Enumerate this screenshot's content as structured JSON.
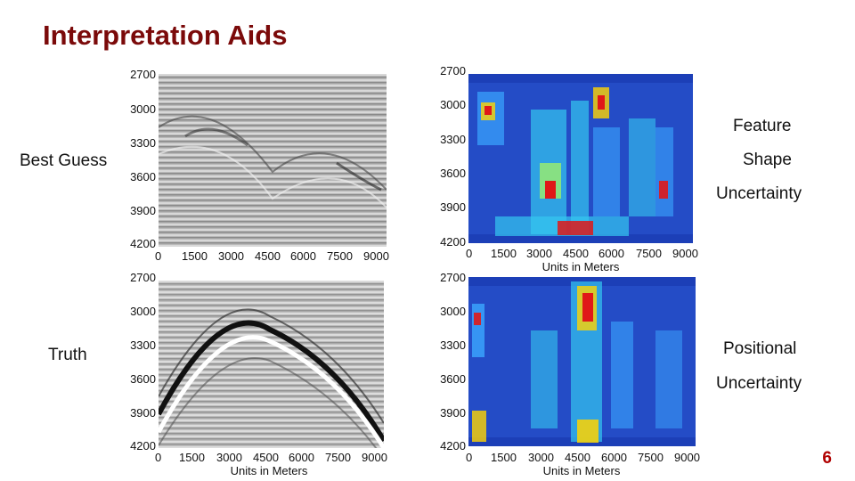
{
  "slide": {
    "title": "Interpretation Aids",
    "page_number": "6"
  },
  "labels": {
    "best_guess": "Best Guess",
    "truth": "Truth",
    "feature": "Feature",
    "shape": "Shape",
    "uncertainty_top": "Uncertainty",
    "positional": "Positional",
    "uncertainty_bottom": "Uncertainty"
  },
  "axes": {
    "y_ticks": [
      "2700",
      "3000",
      "3300",
      "3600",
      "3900",
      "4200"
    ],
    "x_ticks": [
      "0",
      "1500",
      "3000",
      "4500",
      "6000",
      "7500",
      "9000"
    ],
    "x_label": "Units in Meters"
  },
  "colors": {
    "title": "#7b0a0a",
    "page_number": "#b00000",
    "heatmap_background": "#1c3fb7"
  }
}
